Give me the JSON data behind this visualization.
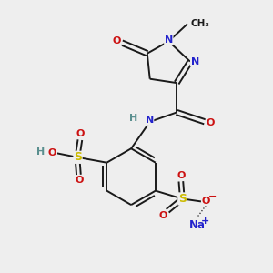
{
  "bg_color": "#eeeeee",
  "fig_size": [
    3.0,
    3.0
  ],
  "dpi": 100,
  "bond_color": "#1a1a1a",
  "bond_width": 1.4,
  "atom_colors": {
    "C": "#1a1a1a",
    "H": "#5a8f8f",
    "N": "#2222cc",
    "O": "#cc1111",
    "S": "#ccbb00",
    "Na": "#2222cc"
  },
  "font_size_atom": 8,
  "font_size_small": 7,
  "font_size_label": 7.5
}
